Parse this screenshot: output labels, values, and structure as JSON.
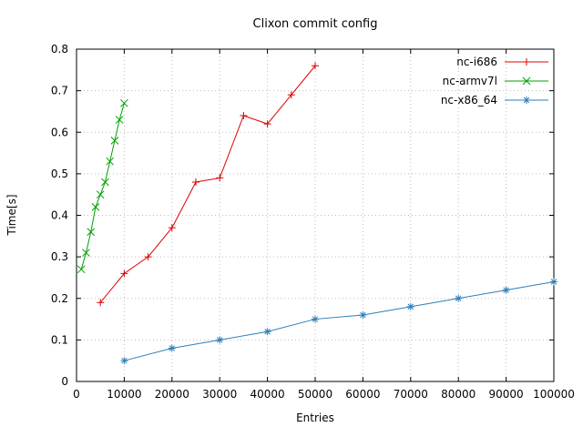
{
  "chart_data": {
    "type": "line",
    "title": "Clixon commit config",
    "xlabel": "Entries",
    "ylabel": "Time[s]",
    "xlim": [
      0,
      100000
    ],
    "ylim": [
      0,
      0.8
    ],
    "xtick_step": 10000,
    "ytick_step": 0.1,
    "grid": true,
    "legend_position": "top-right-inside",
    "series": [
      {
        "name": "nc-i686",
        "color": "#dd0000",
        "marker": "plus",
        "x": [
          5000,
          10000,
          15000,
          20000,
          25000,
          30000,
          35000,
          40000,
          45000,
          50000
        ],
        "y": [
          0.19,
          0.26,
          0.3,
          0.37,
          0.48,
          0.49,
          0.64,
          0.62,
          0.69,
          0.76
        ]
      },
      {
        "name": "nc-armv7l",
        "color": "#00a000",
        "marker": "cross",
        "x": [
          1000,
          2000,
          3000,
          4000,
          5000,
          6000,
          7000,
          8000,
          9000,
          10000
        ],
        "y": [
          0.27,
          0.31,
          0.36,
          0.42,
          0.45,
          0.48,
          0.53,
          0.58,
          0.63,
          0.67
        ]
      },
      {
        "name": "nc-x86_64",
        "color": "#2e7eb8",
        "marker": "star",
        "x": [
          10000,
          20000,
          30000,
          40000,
          50000,
          60000,
          70000,
          80000,
          90000,
          100000
        ],
        "y": [
          0.05,
          0.08,
          0.1,
          0.12,
          0.15,
          0.16,
          0.18,
          0.2,
          0.22,
          0.24
        ]
      }
    ]
  }
}
